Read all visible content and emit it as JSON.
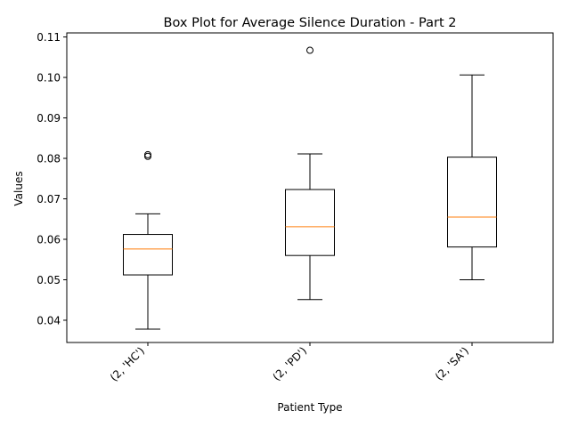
{
  "chart_data": {
    "type": "box",
    "title": "Box Plot for Average Silence Duration - Part 2",
    "xlabel": "Patient Type",
    "ylabel": "Values",
    "categories": [
      "(2, 'HC')",
      "(2, 'PD')",
      "(2, 'SA')"
    ],
    "boxes": [
      {
        "category": "(2, 'HC')",
        "whisker_low": 0.0378,
        "q1": 0.0512,
        "median": 0.0576,
        "q3": 0.0612,
        "whisker_high": 0.0663,
        "outliers": [
          0.0805,
          0.0809
        ]
      },
      {
        "category": "(2, 'PD')",
        "whisker_low": 0.0451,
        "q1": 0.056,
        "median": 0.0631,
        "q3": 0.0723,
        "whisker_high": 0.0811,
        "outliers": [
          0.1067
        ]
      },
      {
        "category": "(2, 'SA')",
        "whisker_low": 0.05,
        "q1": 0.0581,
        "median": 0.0655,
        "q3": 0.0803,
        "whisker_high": 0.1006,
        "outliers": []
      }
    ],
    "ylim": [
      0.0345,
      0.111
    ],
    "yticks": [
      0.04,
      0.05,
      0.06,
      0.07,
      0.08,
      0.09,
      0.1,
      0.11
    ],
    "ytick_labels": [
      "0.04",
      "0.05",
      "0.06",
      "0.07",
      "0.08",
      "0.09",
      "0.10",
      "0.11"
    ],
    "grid": false,
    "colors": {
      "box": "#000000",
      "median": "#ff7f0e",
      "background": "#ffffff"
    }
  }
}
